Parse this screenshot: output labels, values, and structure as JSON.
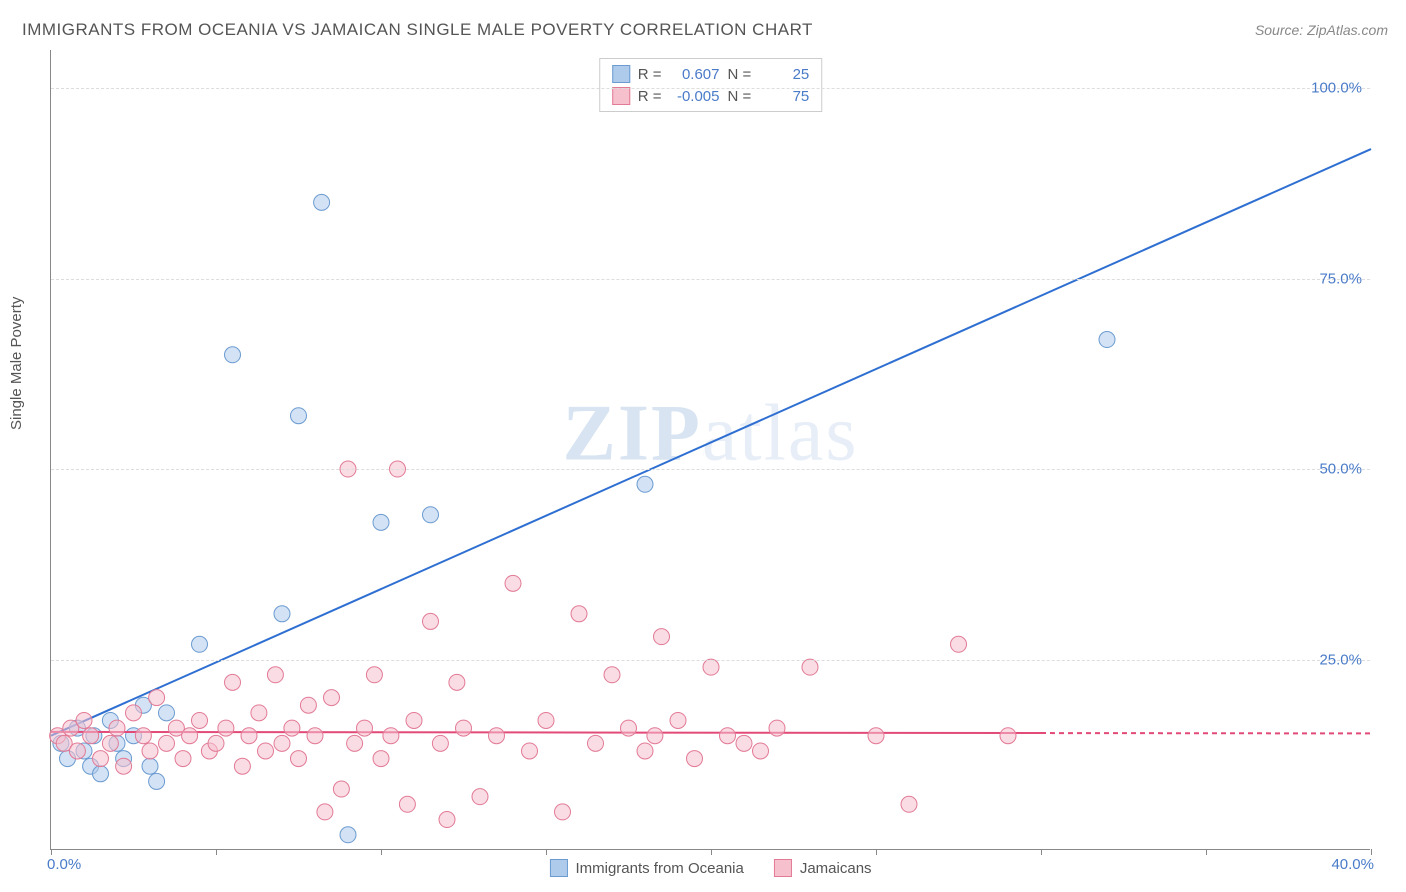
{
  "title": "IMMIGRANTS FROM OCEANIA VS JAMAICAN SINGLE MALE POVERTY CORRELATION CHART",
  "source": "Source: ZipAtlas.com",
  "y_label": "Single Male Poverty",
  "watermark_bold": "ZIP",
  "watermark_rest": "atlas",
  "chart": {
    "type": "scatter",
    "background_color": "#ffffff",
    "grid_color": "#dddddd",
    "axis_color": "#888888",
    "xlim": [
      0,
      40
    ],
    "ylim": [
      0,
      105
    ],
    "x_start_label": "0.0%",
    "x_end_label": "40.0%",
    "x_tick_positions": [
      0,
      5,
      10,
      15,
      20,
      25,
      30,
      35,
      40
    ],
    "y_ticks": [
      {
        "v": 25,
        "label": "25.0%"
      },
      {
        "v": 50,
        "label": "50.0%"
      },
      {
        "v": 75,
        "label": "75.0%"
      },
      {
        "v": 100,
        "label": "100.0%"
      }
    ],
    "marker_radius": 8,
    "series": [
      {
        "name": "Immigrants from Oceania",
        "fill": "#aecbeb",
        "stroke": "#6b9bd1",
        "fill_opacity": 0.55,
        "line_color": "#2e6fd1",
        "line_width": 2,
        "trend": {
          "x1": 0,
          "y1": 15,
          "x2": 40,
          "y2": 92,
          "solid_until_x": 40
        },
        "R": "0.607",
        "N": "25",
        "points": [
          [
            0.3,
            14
          ],
          [
            0.5,
            12
          ],
          [
            0.8,
            16
          ],
          [
            1.0,
            13
          ],
          [
            1.2,
            11
          ],
          [
            1.3,
            15
          ],
          [
            1.5,
            10
          ],
          [
            1.8,
            17
          ],
          [
            2.0,
            14
          ],
          [
            2.2,
            12
          ],
          [
            2.5,
            15
          ],
          [
            2.8,
            19
          ],
          [
            3.0,
            11
          ],
          [
            3.2,
            9
          ],
          [
            3.5,
            18
          ],
          [
            4.5,
            27
          ],
          [
            5.5,
            65
          ],
          [
            7.0,
            31
          ],
          [
            7.5,
            57
          ],
          [
            8.2,
            85
          ],
          [
            9.0,
            2
          ],
          [
            10.0,
            43
          ],
          [
            11.5,
            44
          ],
          [
            18.0,
            48
          ],
          [
            32.0,
            67
          ]
        ]
      },
      {
        "name": "Jamaicans",
        "fill": "#f6c0cd",
        "stroke": "#e27a96",
        "fill_opacity": 0.55,
        "line_color": "#e24a78",
        "line_width": 2,
        "trend": {
          "x1": 0,
          "y1": 15.5,
          "x2": 40,
          "y2": 15.3,
          "solid_until_x": 30
        },
        "R": "-0.005",
        "N": "75",
        "points": [
          [
            0.2,
            15
          ],
          [
            0.4,
            14
          ],
          [
            0.6,
            16
          ],
          [
            0.8,
            13
          ],
          [
            1.0,
            17
          ],
          [
            1.2,
            15
          ],
          [
            1.5,
            12
          ],
          [
            1.8,
            14
          ],
          [
            2.0,
            16
          ],
          [
            2.2,
            11
          ],
          [
            2.5,
            18
          ],
          [
            2.8,
            15
          ],
          [
            3.0,
            13
          ],
          [
            3.2,
            20
          ],
          [
            3.5,
            14
          ],
          [
            3.8,
            16
          ],
          [
            4.0,
            12
          ],
          [
            4.2,
            15
          ],
          [
            4.5,
            17
          ],
          [
            4.8,
            13
          ],
          [
            5.0,
            14
          ],
          [
            5.3,
            16
          ],
          [
            5.5,
            22
          ],
          [
            5.8,
            11
          ],
          [
            6.0,
            15
          ],
          [
            6.3,
            18
          ],
          [
            6.5,
            13
          ],
          [
            6.8,
            23
          ],
          [
            7.0,
            14
          ],
          [
            7.3,
            16
          ],
          [
            7.5,
            12
          ],
          [
            7.8,
            19
          ],
          [
            8.0,
            15
          ],
          [
            8.3,
            5
          ],
          [
            8.5,
            20
          ],
          [
            8.8,
            8
          ],
          [
            9.0,
            50
          ],
          [
            9.2,
            14
          ],
          [
            9.5,
            16
          ],
          [
            9.8,
            23
          ],
          [
            10.0,
            12
          ],
          [
            10.3,
            15
          ],
          [
            10.5,
            50
          ],
          [
            10.8,
            6
          ],
          [
            11.0,
            17
          ],
          [
            11.5,
            30
          ],
          [
            11.8,
            14
          ],
          [
            12.0,
            4
          ],
          [
            12.3,
            22
          ],
          [
            12.5,
            16
          ],
          [
            13.0,
            7
          ],
          [
            13.5,
            15
          ],
          [
            14.0,
            35
          ],
          [
            14.5,
            13
          ],
          [
            15.0,
            17
          ],
          [
            15.5,
            5
          ],
          [
            16.0,
            31
          ],
          [
            16.5,
            14
          ],
          [
            17.0,
            23
          ],
          [
            17.5,
            16
          ],
          [
            18.0,
            13
          ],
          [
            18.3,
            15
          ],
          [
            18.5,
            28
          ],
          [
            19.0,
            17
          ],
          [
            19.5,
            12
          ],
          [
            20.0,
            24
          ],
          [
            20.5,
            15
          ],
          [
            21.0,
            14
          ],
          [
            21.5,
            13
          ],
          [
            22.0,
            16
          ],
          [
            23.0,
            24
          ],
          [
            25.0,
            15
          ],
          [
            26.0,
            6
          ],
          [
            27.5,
            27
          ],
          [
            29.0,
            15
          ]
        ]
      }
    ]
  },
  "stats_labels": {
    "R": "R =",
    "N": "N ="
  },
  "legend_items": [
    {
      "label": "Immigrants from Oceania",
      "fill": "#aecbeb",
      "stroke": "#6b9bd1"
    },
    {
      "label": "Jamaicans",
      "fill": "#f6c0cd",
      "stroke": "#e27a96"
    }
  ]
}
